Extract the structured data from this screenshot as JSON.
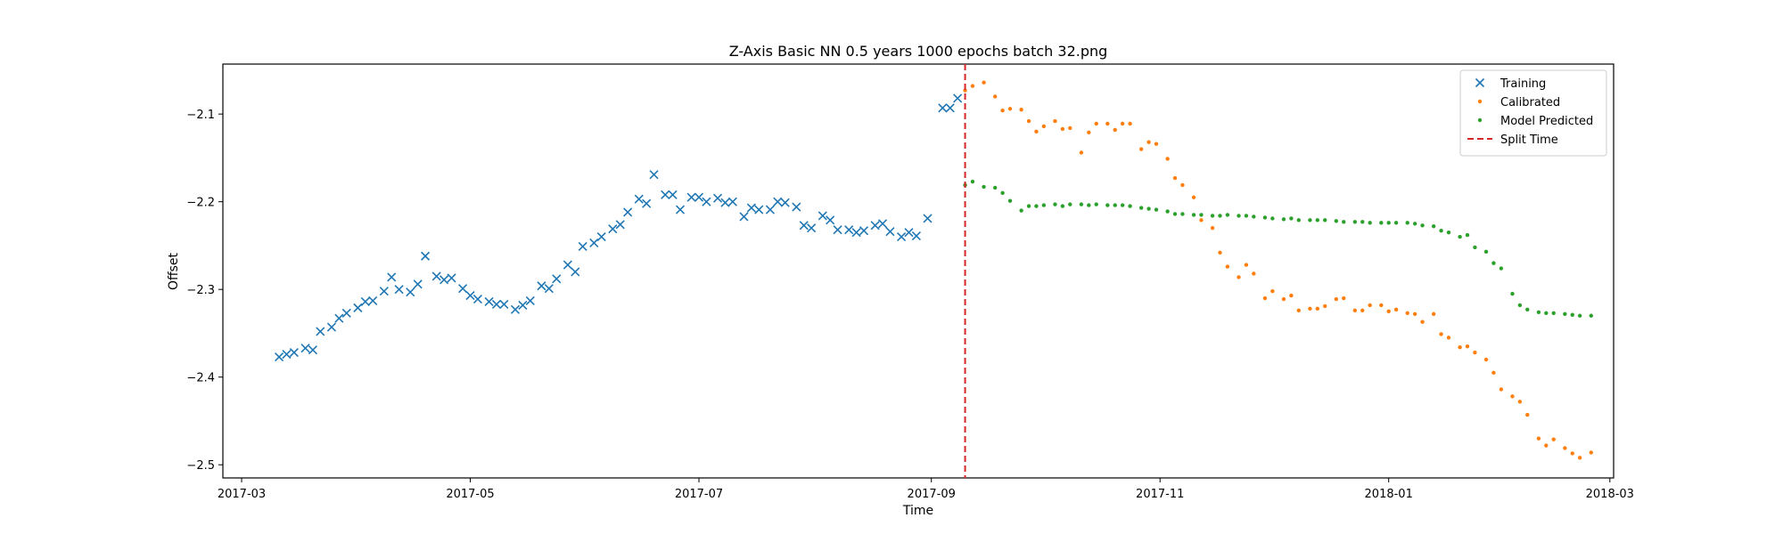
{
  "chart_data": {
    "type": "scatter",
    "title": "Z-Axis Basic NN 0.5 years 1000 epochs batch 32.png",
    "xlabel": "Time",
    "ylabel": "Offset",
    "xlim": [
      "2017-02-24",
      "2018-03-02"
    ],
    "ylim": [
      -2.515,
      -2.043
    ],
    "x_ticks": [
      "2017-03",
      "2017-05",
      "2017-07",
      "2017-09",
      "2017-11",
      "2018-01",
      "2018-03"
    ],
    "y_ticks": [
      -2.1,
      -2.2,
      -2.3,
      -2.4,
      -2.5
    ],
    "y_tick_labels": [
      "−2.1",
      "−2.2",
      "−2.3",
      "−2.4",
      "−2.5"
    ],
    "grid": false,
    "legend_position": "top-right",
    "colors": {
      "Training": "#1f77b4",
      "Calibrated": "#ff7f0e",
      "Model Predicted": "#2ca02c",
      "Split Time": "#d62728"
    },
    "split_time": "2017-09-10",
    "series": [
      {
        "name": "Training",
        "marker": "x",
        "points": [
          [
            "2017-03-11",
            -2.377
          ],
          [
            "2017-03-13",
            -2.374
          ],
          [
            "2017-03-15",
            -2.372
          ],
          [
            "2017-03-18",
            -2.367
          ],
          [
            "2017-03-20",
            -2.369
          ],
          [
            "2017-03-22",
            -2.348
          ],
          [
            "2017-03-25",
            -2.343
          ],
          [
            "2017-03-27",
            -2.333
          ],
          [
            "2017-03-29",
            -2.327
          ],
          [
            "2017-04-01",
            -2.321
          ],
          [
            "2017-04-03",
            -2.314
          ],
          [
            "2017-04-05",
            -2.313
          ],
          [
            "2017-04-08",
            -2.302
          ],
          [
            "2017-04-10",
            -2.286
          ],
          [
            "2017-04-12",
            -2.3
          ],
          [
            "2017-04-15",
            -2.303
          ],
          [
            "2017-04-17",
            -2.294
          ],
          [
            "2017-04-19",
            -2.262
          ],
          [
            "2017-04-22",
            -2.285
          ],
          [
            "2017-04-24",
            -2.289
          ],
          [
            "2017-04-26",
            -2.287
          ],
          [
            "2017-04-29",
            -2.299
          ],
          [
            "2017-05-01",
            -2.307
          ],
          [
            "2017-05-03",
            -2.311
          ],
          [
            "2017-05-06",
            -2.314
          ],
          [
            "2017-05-08",
            -2.317
          ],
          [
            "2017-05-10",
            -2.317
          ],
          [
            "2017-05-13",
            -2.323
          ],
          [
            "2017-05-15",
            -2.318
          ],
          [
            "2017-05-17",
            -2.313
          ],
          [
            "2017-05-20",
            -2.296
          ],
          [
            "2017-05-22",
            -2.299
          ],
          [
            "2017-05-24",
            -2.288
          ],
          [
            "2017-05-27",
            -2.272
          ],
          [
            "2017-05-29",
            -2.28
          ],
          [
            "2017-05-31",
            -2.251
          ],
          [
            "2017-06-03",
            -2.247
          ],
          [
            "2017-06-05",
            -2.24
          ],
          [
            "2017-06-08",
            -2.231
          ],
          [
            "2017-06-10",
            -2.226
          ],
          [
            "2017-06-12",
            -2.212
          ],
          [
            "2017-06-15",
            -2.197
          ],
          [
            "2017-06-17",
            -2.202
          ],
          [
            "2017-06-19",
            -2.169
          ],
          [
            "2017-06-22",
            -2.192
          ],
          [
            "2017-06-24",
            -2.192
          ],
          [
            "2017-06-26",
            -2.209
          ],
          [
            "2017-06-29",
            -2.195
          ],
          [
            "2017-07-01",
            -2.195
          ],
          [
            "2017-07-03",
            -2.2
          ],
          [
            "2017-07-06",
            -2.196
          ],
          [
            "2017-07-08",
            -2.201
          ],
          [
            "2017-07-10",
            -2.2
          ],
          [
            "2017-07-13",
            -2.217
          ],
          [
            "2017-07-15",
            -2.207
          ],
          [
            "2017-07-17",
            -2.209
          ],
          [
            "2017-07-20",
            -2.209
          ],
          [
            "2017-07-22",
            -2.2
          ],
          [
            "2017-07-24",
            -2.201
          ],
          [
            "2017-07-27",
            -2.206
          ],
          [
            "2017-07-29",
            -2.227
          ],
          [
            "2017-07-31",
            -2.23
          ],
          [
            "2017-08-03",
            -2.216
          ],
          [
            "2017-08-05",
            -2.221
          ],
          [
            "2017-08-07",
            -2.232
          ],
          [
            "2017-08-10",
            -2.232
          ],
          [
            "2017-08-12",
            -2.235
          ],
          [
            "2017-08-14",
            -2.233
          ],
          [
            "2017-08-17",
            -2.227
          ],
          [
            "2017-08-19",
            -2.225
          ],
          [
            "2017-08-21",
            -2.234
          ],
          [
            "2017-08-24",
            -2.24
          ],
          [
            "2017-08-26",
            -2.235
          ],
          [
            "2017-08-28",
            -2.239
          ],
          [
            "2017-08-31",
            -2.219
          ],
          [
            "2017-09-04",
            -2.093
          ],
          [
            "2017-09-06",
            -2.093
          ],
          [
            "2017-09-08",
            -2.082
          ]
        ]
      },
      {
        "name": "Calibrated",
        "marker": "dot",
        "points": [
          [
            "2017-09-10",
            -2.073
          ],
          [
            "2017-09-12",
            -2.068
          ],
          [
            "2017-09-15",
            -2.064
          ],
          [
            "2017-09-18",
            -2.08
          ],
          [
            "2017-09-20",
            -2.096
          ],
          [
            "2017-09-22",
            -2.094
          ],
          [
            "2017-09-25",
            -2.095
          ],
          [
            "2017-09-27",
            -2.108
          ],
          [
            "2017-09-29",
            -2.12
          ],
          [
            "2017-10-01",
            -2.114
          ],
          [
            "2017-10-04",
            -2.108
          ],
          [
            "2017-10-06",
            -2.117
          ],
          [
            "2017-10-08",
            -2.116
          ],
          [
            "2017-10-11",
            -2.144
          ],
          [
            "2017-10-13",
            -2.121
          ],
          [
            "2017-10-15",
            -2.111
          ],
          [
            "2017-10-18",
            -2.111
          ],
          [
            "2017-10-20",
            -2.118
          ],
          [
            "2017-10-22",
            -2.111
          ],
          [
            "2017-10-24",
            -2.111
          ],
          [
            "2017-10-27",
            -2.14
          ],
          [
            "2017-10-29",
            -2.132
          ],
          [
            "2017-10-31",
            -2.134
          ],
          [
            "2017-11-03",
            -2.151
          ],
          [
            "2017-11-05",
            -2.173
          ],
          [
            "2017-11-07",
            -2.181
          ],
          [
            "2017-11-10",
            -2.195
          ],
          [
            "2017-11-12",
            -2.221
          ],
          [
            "2017-11-15",
            -2.23
          ],
          [
            "2017-11-17",
            -2.258
          ],
          [
            "2017-11-19",
            -2.274
          ],
          [
            "2017-11-22",
            -2.286
          ],
          [
            "2017-11-24",
            -2.272
          ],
          [
            "2017-11-26",
            -2.282
          ],
          [
            "2017-11-29",
            -2.31
          ],
          [
            "2017-12-01",
            -2.302
          ],
          [
            "2017-12-04",
            -2.311
          ],
          [
            "2017-12-06",
            -2.307
          ],
          [
            "2017-12-08",
            -2.324
          ],
          [
            "2017-12-11",
            -2.322
          ],
          [
            "2017-12-13",
            -2.322
          ],
          [
            "2017-12-15",
            -2.319
          ],
          [
            "2017-12-18",
            -2.311
          ],
          [
            "2017-12-20",
            -2.31
          ],
          [
            "2017-12-23",
            -2.324
          ],
          [
            "2017-12-25",
            -2.324
          ],
          [
            "2017-12-27",
            -2.318
          ],
          [
            "2017-12-30",
            -2.318
          ],
          [
            "2018-01-01",
            -2.325
          ],
          [
            "2018-01-03",
            -2.323
          ],
          [
            "2018-01-06",
            -2.327
          ],
          [
            "2018-01-08",
            -2.328
          ],
          [
            "2018-01-10",
            -2.337
          ],
          [
            "2018-01-13",
            -2.328
          ],
          [
            "2018-01-15",
            -2.351
          ],
          [
            "2018-01-17",
            -2.355
          ],
          [
            "2018-01-20",
            -2.366
          ],
          [
            "2018-01-22",
            -2.365
          ],
          [
            "2018-01-24",
            -2.372
          ],
          [
            "2018-01-27",
            -2.38
          ],
          [
            "2018-01-29",
            -2.395
          ],
          [
            "2018-01-31",
            -2.414
          ],
          [
            "2018-02-03",
            -2.422
          ],
          [
            "2018-02-05",
            -2.428
          ],
          [
            "2018-02-07",
            -2.443
          ],
          [
            "2018-02-10",
            -2.47
          ],
          [
            "2018-02-12",
            -2.478
          ],
          [
            "2018-02-14",
            -2.471
          ],
          [
            "2018-02-17",
            -2.481
          ],
          [
            "2018-02-19",
            -2.487
          ],
          [
            "2018-02-21",
            -2.492
          ],
          [
            "2018-02-24",
            -2.486
          ]
        ]
      },
      {
        "name": "Model Predicted",
        "marker": "dot",
        "points": [
          [
            "2017-09-10",
            -2.181
          ],
          [
            "2017-09-12",
            -2.177
          ],
          [
            "2017-09-15",
            -2.183
          ],
          [
            "2017-09-18",
            -2.184
          ],
          [
            "2017-09-20",
            -2.19
          ],
          [
            "2017-09-22",
            -2.199
          ],
          [
            "2017-09-25",
            -2.21
          ],
          [
            "2017-09-27",
            -2.205
          ],
          [
            "2017-09-29",
            -2.205
          ],
          [
            "2017-10-01",
            -2.204
          ],
          [
            "2017-10-04",
            -2.203
          ],
          [
            "2017-10-06",
            -2.205
          ],
          [
            "2017-10-08",
            -2.203
          ],
          [
            "2017-10-11",
            -2.203
          ],
          [
            "2017-10-13",
            -2.204
          ],
          [
            "2017-10-15",
            -2.203
          ],
          [
            "2017-10-18",
            -2.204
          ],
          [
            "2017-10-20",
            -2.204
          ],
          [
            "2017-10-22",
            -2.204
          ],
          [
            "2017-10-24",
            -2.205
          ],
          [
            "2017-10-27",
            -2.207
          ],
          [
            "2017-10-29",
            -2.208
          ],
          [
            "2017-10-31",
            -2.209
          ],
          [
            "2017-11-03",
            -2.211
          ],
          [
            "2017-11-05",
            -2.214
          ],
          [
            "2017-11-07",
            -2.214
          ],
          [
            "2017-11-10",
            -2.215
          ],
          [
            "2017-11-12",
            -2.215
          ],
          [
            "2017-11-15",
            -2.216
          ],
          [
            "2017-11-17",
            -2.216
          ],
          [
            "2017-11-19",
            -2.215
          ],
          [
            "2017-11-22",
            -2.216
          ],
          [
            "2017-11-24",
            -2.216
          ],
          [
            "2017-11-26",
            -2.217
          ],
          [
            "2017-11-29",
            -2.218
          ],
          [
            "2017-12-01",
            -2.219
          ],
          [
            "2017-12-04",
            -2.22
          ],
          [
            "2017-12-06",
            -2.219
          ],
          [
            "2017-12-08",
            -2.221
          ],
          [
            "2017-12-11",
            -2.221
          ],
          [
            "2017-12-13",
            -2.221
          ],
          [
            "2017-12-15",
            -2.221
          ],
          [
            "2017-12-18",
            -2.222
          ],
          [
            "2017-12-20",
            -2.223
          ],
          [
            "2017-12-23",
            -2.223
          ],
          [
            "2017-12-25",
            -2.223
          ],
          [
            "2017-12-27",
            -2.224
          ],
          [
            "2017-12-30",
            -2.224
          ],
          [
            "2018-01-01",
            -2.224
          ],
          [
            "2018-01-03",
            -2.224
          ],
          [
            "2018-01-06",
            -2.224
          ],
          [
            "2018-01-08",
            -2.225
          ],
          [
            "2018-01-10",
            -2.227
          ],
          [
            "2018-01-13",
            -2.228
          ],
          [
            "2018-01-15",
            -2.233
          ],
          [
            "2018-01-17",
            -2.235
          ],
          [
            "2018-01-20",
            -2.24
          ],
          [
            "2018-01-22",
            -2.238
          ],
          [
            "2018-01-24",
            -2.252
          ],
          [
            "2018-01-27",
            -2.257
          ],
          [
            "2018-01-29",
            -2.27
          ],
          [
            "2018-01-31",
            -2.276
          ],
          [
            "2018-02-03",
            -2.305
          ],
          [
            "2018-02-05",
            -2.318
          ],
          [
            "2018-02-07",
            -2.323
          ],
          [
            "2018-02-10",
            -2.326
          ],
          [
            "2018-02-12",
            -2.327
          ],
          [
            "2018-02-14",
            -2.327
          ],
          [
            "2018-02-17",
            -2.328
          ],
          [
            "2018-02-19",
            -2.329
          ],
          [
            "2018-02-21",
            -2.33
          ],
          [
            "2018-02-24",
            -2.33
          ]
        ]
      }
    ],
    "legend": [
      {
        "label": "Training",
        "symbol": "x"
      },
      {
        "label": "Calibrated",
        "symbol": "dot"
      },
      {
        "label": "Model Predicted",
        "symbol": "dot"
      },
      {
        "label": "Split Time",
        "symbol": "dashed-line"
      }
    ]
  }
}
